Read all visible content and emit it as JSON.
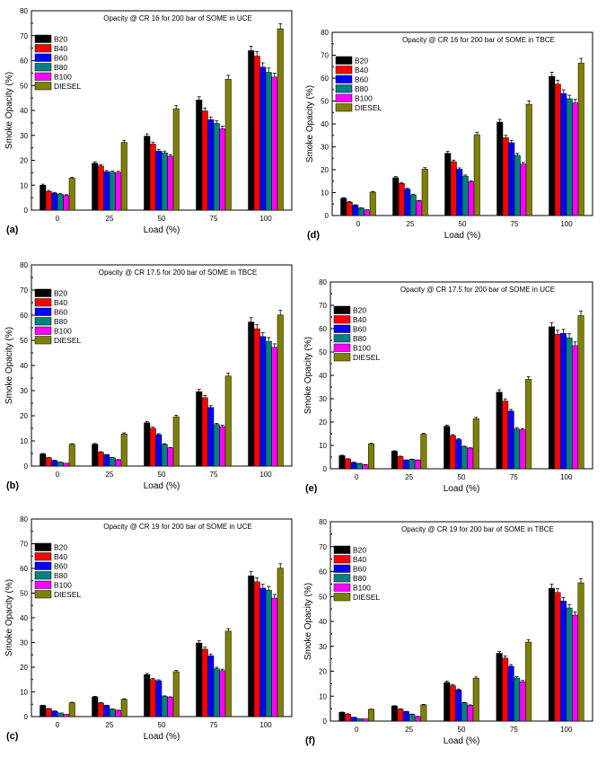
{
  "chart_data": [
    {
      "panel": "(a)",
      "type": "bar",
      "title": "Opacity @ CR 16 for 200 bar of SOME in UCE",
      "xlabel": "Load (%)",
      "ylabel": "Smoke Opacity (%)",
      "ylim": [
        0,
        80
      ],
      "yticks": [
        0,
        10,
        20,
        30,
        40,
        50,
        60,
        70,
        80
      ],
      "categories": [
        "0",
        "25",
        "50",
        "75",
        "100"
      ],
      "legend_position": "top-left",
      "series": [
        {
          "name": "B20",
          "color": "#000000",
          "values": [
            10.0,
            18.8,
            29.7,
            44.2,
            64.0
          ],
          "errors": [
            0.4,
            0.6,
            0.9,
            1.3,
            1.8
          ]
        },
        {
          "name": "B40",
          "color": "#ff0000",
          "values": [
            7.5,
            17.7,
            26.5,
            39.8,
            61.8
          ],
          "errors": [
            0.4,
            0.5,
            0.8,
            1.2,
            1.8
          ]
        },
        {
          "name": "B60",
          "color": "#0000ff",
          "values": [
            6.8,
            15.4,
            23.7,
            36.3,
            57.4
          ],
          "errors": [
            0.3,
            0.5,
            0.7,
            1.1,
            1.7
          ]
        },
        {
          "name": "B80",
          "color": "#008080",
          "values": [
            6.3,
            15.2,
            23.0,
            34.8,
            55.3
          ],
          "errors": [
            0.3,
            0.5,
            0.7,
            1.0,
            1.7
          ]
        },
        {
          "name": "B100",
          "color": "#ff00ff",
          "values": [
            5.9,
            15.1,
            21.6,
            32.7,
            53.4
          ],
          "errors": [
            0.3,
            0.5,
            0.6,
            1.0,
            1.6
          ]
        },
        {
          "name": "DIESEL",
          "color": "#808000",
          "values": [
            12.8,
            27.2,
            40.7,
            52.5,
            72.8
          ],
          "errors": [
            0.4,
            0.8,
            1.2,
            1.6,
            2.0
          ]
        }
      ]
    },
    {
      "panel": "(d)",
      "type": "bar",
      "title": "Opacity @ CR 16 for 200 bar of SOME in TBCE",
      "xlabel": "Load (%)",
      "ylabel": "Smoke Opacity (%)",
      "ylim": [
        0,
        80
      ],
      "yticks": [
        0,
        10,
        20,
        30,
        40,
        50,
        60,
        70,
        80
      ],
      "categories": [
        "0",
        "25",
        "50",
        "75",
        "100"
      ],
      "legend_position": "top-left",
      "series": [
        {
          "name": "B20",
          "color": "#000000",
          "values": [
            7.5,
            16.5,
            27.2,
            40.8,
            60.8
          ],
          "errors": [
            0.3,
            0.5,
            0.8,
            1.2,
            1.8
          ]
        },
        {
          "name": "B40",
          "color": "#ff0000",
          "values": [
            5.8,
            14.0,
            23.5,
            34.0,
            57.4
          ],
          "errors": [
            0.3,
            0.4,
            0.7,
            1.0,
            1.7
          ]
        },
        {
          "name": "B60",
          "color": "#0000ff",
          "values": [
            4.5,
            11.5,
            20.2,
            31.8,
            53.3
          ],
          "errors": [
            0.2,
            0.4,
            0.6,
            1.0,
            1.6
          ]
        },
        {
          "name": "B80",
          "color": "#008080",
          "values": [
            3.2,
            9.0,
            17.2,
            26.3,
            51.0
          ],
          "errors": [
            0.2,
            0.3,
            0.5,
            0.8,
            1.5
          ]
        },
        {
          "name": "B100",
          "color": "#ff00ff",
          "values": [
            2.4,
            6.4,
            14.7,
            22.5,
            49.2
          ],
          "errors": [
            0.1,
            0.2,
            0.4,
            0.7,
            1.5
          ]
        },
        {
          "name": "DIESEL",
          "color": "#808000",
          "values": [
            10.2,
            20.3,
            35.3,
            48.6,
            66.6
          ],
          "errors": [
            0.3,
            0.6,
            1.1,
            1.5,
            2.0
          ]
        }
      ]
    },
    {
      "panel": "(b)",
      "type": "bar",
      "title": "Opacity @ CR 17.5 for 200 bar of SOME in TBCE",
      "xlabel": "Load (%)",
      "ylabel": "Smoke Opacity (%)",
      "ylim": [
        0,
        80
      ],
      "yticks": [
        0,
        10,
        20,
        30,
        40,
        50,
        60,
        70,
        80
      ],
      "categories": [
        "0",
        "25",
        "50",
        "75",
        "100"
      ],
      "legend_position": "top-left",
      "series": [
        {
          "name": "B20",
          "color": "#000000",
          "values": [
            4.8,
            8.7,
            17.2,
            29.6,
            57.3
          ],
          "errors": [
            0.2,
            0.3,
            0.5,
            0.9,
            1.7
          ]
        },
        {
          "name": "B40",
          "color": "#ff0000",
          "values": [
            3.3,
            5.5,
            15.0,
            27.2,
            54.6
          ],
          "errors": [
            0.1,
            0.2,
            0.5,
            0.8,
            1.6
          ]
        },
        {
          "name": "B60",
          "color": "#0000ff",
          "values": [
            2.2,
            4.5,
            12.5,
            23.3,
            51.5
          ],
          "errors": [
            0.1,
            0.1,
            0.4,
            0.7,
            1.5
          ]
        },
        {
          "name": "B80",
          "color": "#008080",
          "values": [
            1.5,
            3.3,
            8.6,
            16.5,
            49.6
          ],
          "errors": [
            0.1,
            0.1,
            0.3,
            0.5,
            1.5
          ]
        },
        {
          "name": "B100",
          "color": "#ff00ff",
          "values": [
            1.2,
            2.5,
            7.2,
            15.7,
            47.2
          ],
          "errors": [
            0.0,
            0.1,
            0.2,
            0.5,
            1.4
          ]
        },
        {
          "name": "DIESEL",
          "color": "#808000",
          "values": [
            8.6,
            12.8,
            19.6,
            35.8,
            60.1
          ],
          "errors": [
            0.3,
            0.4,
            0.6,
            1.1,
            1.8
          ]
        }
      ]
    },
    {
      "panel": "(e)",
      "type": "bar",
      "title": "Opacity @ CR 17.5 for 200 bar of SOME in UCE",
      "xlabel": "Load (%)",
      "ylabel": "Smoke Opacity (%)",
      "ylim": [
        0,
        80
      ],
      "yticks": [
        0,
        10,
        20,
        30,
        40,
        50,
        60,
        70,
        80
      ],
      "categories": [
        "0",
        "25",
        "50",
        "75",
        "100"
      ],
      "legend_position": "top-left",
      "series": [
        {
          "name": "B20",
          "color": "#000000",
          "values": [
            5.6,
            7.5,
            18.2,
            32.8,
            60.8
          ],
          "errors": [
            0.2,
            0.2,
            0.5,
            1.0,
            1.8
          ]
        },
        {
          "name": "B40",
          "color": "#ff0000",
          "values": [
            4.2,
            5.2,
            14.2,
            29.0,
            57.6
          ],
          "errors": [
            0.1,
            0.2,
            0.4,
            0.9,
            1.7
          ]
        },
        {
          "name": "B60",
          "color": "#0000ff",
          "values": [
            2.7,
            3.7,
            12.5,
            24.7,
            58.0
          ],
          "errors": [
            0.1,
            0.1,
            0.4,
            0.7,
            1.7
          ]
        },
        {
          "name": "B80",
          "color": "#008080",
          "values": [
            2.2,
            4.0,
            9.4,
            17.0,
            56.1
          ],
          "errors": [
            0.1,
            0.1,
            0.3,
            0.5,
            1.7
          ]
        },
        {
          "name": "B100",
          "color": "#ff00ff",
          "values": [
            1.7,
            3.7,
            8.7,
            16.7,
            52.7
          ],
          "errors": [
            0.1,
            0.1,
            0.3,
            0.5,
            1.6
          ]
        },
        {
          "name": "DIESEL",
          "color": "#808000",
          "values": [
            10.6,
            14.8,
            21.4,
            38.3,
            65.6
          ],
          "errors": [
            0.3,
            0.4,
            0.6,
            1.1,
            2.0
          ]
        }
      ]
    },
    {
      "panel": "(c)",
      "type": "bar",
      "title": "Opacity @ CR 19 for 200 bar of SOME in UCE",
      "xlabel": "Load (%)",
      "ylabel": "Smoke Opacity (%)",
      "ylim": [
        0,
        80
      ],
      "yticks": [
        0,
        10,
        20,
        30,
        40,
        50,
        60,
        70,
        80
      ],
      "categories": [
        "0",
        "25",
        "50",
        "75",
        "100"
      ],
      "legend_position": "top-left",
      "series": [
        {
          "name": "B20",
          "color": "#000000",
          "values": [
            4.5,
            8.0,
            17.0,
            29.8,
            57.0
          ],
          "errors": [
            0.1,
            0.2,
            0.5,
            0.9,
            1.7
          ]
        },
        {
          "name": "B40",
          "color": "#ff0000",
          "values": [
            3.2,
            5.5,
            15.0,
            27.3,
            54.6
          ],
          "errors": [
            0.1,
            0.2,
            0.5,
            0.8,
            1.6
          ]
        },
        {
          "name": "B60",
          "color": "#0000ff",
          "values": [
            2.2,
            4.5,
            14.5,
            24.6,
            52.0
          ],
          "errors": [
            0.1,
            0.1,
            0.4,
            0.7,
            1.6
          ]
        },
        {
          "name": "B80",
          "color": "#008080",
          "values": [
            1.5,
            3.0,
            8.2,
            19.4,
            51.2
          ],
          "errors": [
            0.0,
            0.1,
            0.2,
            0.6,
            1.5
          ]
        },
        {
          "name": "B100",
          "color": "#ff00ff",
          "values": [
            1.0,
            2.5,
            7.8,
            18.6,
            48.0
          ],
          "errors": [
            0.0,
            0.1,
            0.2,
            0.6,
            1.4
          ]
        },
        {
          "name": "DIESEL",
          "color": "#808000",
          "values": [
            5.6,
            7.0,
            18.2,
            34.6,
            60.1
          ],
          "errors": [
            0.2,
            0.2,
            0.5,
            1.0,
            1.8
          ]
        }
      ]
    },
    {
      "panel": "(f)",
      "type": "bar",
      "title": "Opacity @ CR 19 for 200 bar of SOME in TBCE",
      "xlabel": "Load (%)",
      "ylabel": "Smoke Opacity (%)",
      "ylim": [
        0,
        80
      ],
      "yticks": [
        0,
        10,
        20,
        30,
        40,
        50,
        60,
        70,
        80
      ],
      "categories": [
        "0",
        "25",
        "50",
        "75",
        "100"
      ],
      "legend_position": "top-left",
      "series": [
        {
          "name": "B20",
          "color": "#000000",
          "values": [
            3.5,
            6.0,
            15.5,
            27.2,
            53.3
          ],
          "errors": [
            0.1,
            0.2,
            0.5,
            0.8,
            1.6
          ]
        },
        {
          "name": "B40",
          "color": "#ff0000",
          "values": [
            2.8,
            4.8,
            14.2,
            25.3,
            51.6
          ],
          "errors": [
            0.1,
            0.1,
            0.4,
            0.8,
            1.5
          ]
        },
        {
          "name": "B60",
          "color": "#0000ff",
          "values": [
            1.6,
            3.8,
            12.5,
            22.0,
            48.2
          ],
          "errors": [
            0.0,
            0.1,
            0.4,
            0.7,
            1.4
          ]
        },
        {
          "name": "B80",
          "color": "#008080",
          "values": [
            1.0,
            2.7,
            7.3,
            17.3,
            45.4
          ],
          "errors": [
            0.0,
            0.1,
            0.2,
            0.5,
            1.4
          ]
        },
        {
          "name": "B100",
          "color": "#ff00ff",
          "values": [
            0.9,
            1.8,
            6.3,
            15.8,
            42.5
          ],
          "errors": [
            0.0,
            0.1,
            0.2,
            0.5,
            1.3
          ]
        },
        {
          "name": "DIESEL",
          "color": "#808000",
          "values": [
            4.7,
            6.5,
            17.2,
            31.7,
            55.5
          ],
          "errors": [
            0.1,
            0.2,
            0.5,
            1.0,
            1.7
          ]
        }
      ]
    }
  ]
}
